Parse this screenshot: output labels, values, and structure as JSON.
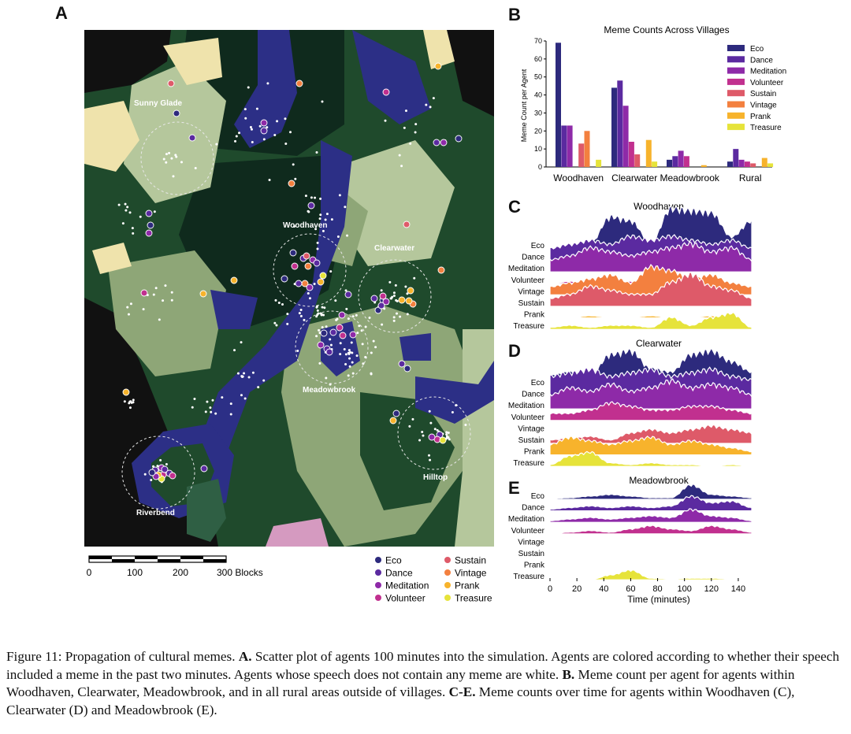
{
  "panels": {
    "a": "A",
    "b": "B",
    "c": "C",
    "d": "D",
    "e": "E"
  },
  "colors": {
    "Eco": "#2d2a7d",
    "Dance": "#5b2aa0",
    "Meditation": "#8e2aa8",
    "Volunteer": "#c1308f",
    "Sustain": "#de5a69",
    "Vintage": "#f3803f",
    "Prank": "#f7b32c",
    "Treasure": "#e6e33a",
    "water": "#2c2f86",
    "dark_forest": "#0f2a1d",
    "forest": "#1f4a2c",
    "plains": "#8ea677",
    "light_plains": "#b5c79c",
    "sand": "#efe3ac",
    "void": "#111111"
  },
  "map": {
    "villages": [
      "Sunny Glade",
      "Woodhaven",
      "Clearwater",
      "Meadowbrook",
      "Hilltop",
      "Riverbend"
    ],
    "scale": {
      "ticks": [
        "0",
        "100",
        "200",
        "300 Blocks"
      ]
    },
    "legend": [
      "Eco",
      "Dance",
      "Meditation",
      "Volunteer",
      "Sustain",
      "Vintage",
      "Prank",
      "Treasure"
    ]
  },
  "chart_data": [
    {
      "type": "bar",
      "title": "Meme Counts Across Villages",
      "ylabel": "Meme Count per Agent",
      "xlabel": "",
      "ylim": [
        0,
        70
      ],
      "yticks": [
        "0",
        "10",
        "20",
        "30",
        "40",
        "50",
        "60",
        "70"
      ],
      "categories": [
        "Woodhaven",
        "Clearwater",
        "Meadowbrook",
        "Rural"
      ],
      "series": [
        {
          "name": "Eco",
          "values": [
            69,
            44,
            4,
            3
          ]
        },
        {
          "name": "Dance",
          "values": [
            23,
            48,
            6,
            10
          ]
        },
        {
          "name": "Meditation",
          "values": [
            23,
            34,
            9,
            4
          ]
        },
        {
          "name": "Volunteer",
          "values": [
            0,
            14,
            6,
            3
          ]
        },
        {
          "name": "Sustain",
          "values": [
            13,
            7,
            0,
            2
          ]
        },
        {
          "name": "Vintage",
          "values": [
            20,
            0,
            0,
            0
          ]
        },
        {
          "name": "Prank",
          "values": [
            0,
            15,
            1,
            5
          ]
        },
        {
          "name": "Treasure",
          "values": [
            4,
            3,
            0,
            2
          ]
        }
      ],
      "legend_position": "top-right"
    },
    {
      "type": "area",
      "title": "Woodhaven",
      "series_labels": [
        "Eco",
        "Dance",
        "Meditation",
        "Volunteer",
        "Vintage",
        "Sustain",
        "Prank",
        "Treasure"
      ],
      "xlim": [
        0,
        150
      ],
      "profiles": [
        [
          0,
          0.05,
          0.15,
          0.8,
          0.7,
          0.15,
          1.0,
          0.95,
          0.9,
          0.3,
          0.7
        ],
        [
          0.3,
          0.4,
          0.5,
          0.4,
          0.6,
          0.5,
          0.6,
          0.5,
          0.4,
          0.5,
          0.3
        ],
        [
          0.3,
          0.4,
          0.6,
          0.5,
          0.4,
          0.5,
          0.6,
          0.7,
          0.5,
          0.6,
          0.3
        ],
        [
          0,
          0.05,
          0,
          0.05,
          0.05,
          0,
          0.05,
          0,
          0.05,
          0,
          0
        ],
        [
          0.2,
          0.3,
          0.4,
          0.5,
          0.3,
          0.7,
          0.6,
          0.4,
          0.5,
          0.3,
          0.2
        ],
        [
          0.2,
          0.3,
          0.5,
          0.4,
          0.3,
          0.3,
          0.6,
          0.8,
          0.5,
          0.4,
          0.2
        ],
        [
          0,
          0,
          0.05,
          0,
          0,
          0.05,
          0,
          0,
          0.05,
          0,
          0
        ],
        [
          0.05,
          0.1,
          0.05,
          0.1,
          0.1,
          0.05,
          0.3,
          0.1,
          0.3,
          0.4,
          0.05
        ]
      ]
    },
    {
      "type": "area",
      "title": "Clearwater",
      "series_labels": [
        "Eco",
        "Dance",
        "Meditation",
        "Volunteer",
        "Vintage",
        "Sustain",
        "Prank",
        "Treasure"
      ],
      "xlim": [
        0,
        150
      ],
      "profiles": [
        [
          0.3,
          0.4,
          0.3,
          0.9,
          1.0,
          0.5,
          0.4,
          0.9,
          1.0,
          0.7,
          0.4
        ],
        [
          0.6,
          0.7,
          0.8,
          0.6,
          0.7,
          0.8,
          0.6,
          0.7,
          0.8,
          0.6,
          0.5
        ],
        [
          0.4,
          0.6,
          0.5,
          0.7,
          0.5,
          0.6,
          0.8,
          0.6,
          0.7,
          0.6,
          0.4
        ],
        [
          0.2,
          0.2,
          0.3,
          0.5,
          0.4,
          0.3,
          0.3,
          0.4,
          0.4,
          0.3,
          0.2
        ],
        [
          0,
          0,
          0,
          0,
          0.02,
          0,
          0,
          0,
          0,
          0,
          0
        ],
        [
          0.1,
          0.15,
          0.2,
          0.1,
          0.3,
          0.4,
          0.3,
          0.4,
          0.5,
          0.4,
          0.3
        ],
        [
          0.3,
          0.5,
          0.4,
          0.3,
          0.4,
          0.5,
          0.3,
          0.4,
          0.3,
          0.2,
          0.1
        ],
        [
          0.05,
          0.3,
          0.4,
          0.1,
          0.05,
          0.1,
          0.05,
          0.05,
          0,
          0.05,
          0
        ]
      ]
    },
    {
      "type": "area",
      "title": "Meadowbrook",
      "series_labels": [
        "Eco",
        "Dance",
        "Meditation",
        "Volunteer",
        "Vintage",
        "Sustain",
        "Prank",
        "Treasure"
      ],
      "xlim": [
        0,
        150
      ],
      "xticks": [
        "0",
        "20",
        "40",
        "60",
        "80",
        "100",
        "120",
        "140"
      ],
      "xlabel": "Time (minutes)",
      "profiles": [
        [
          0.05,
          0.1,
          0.2,
          0.3,
          0.2,
          0.1,
          0.1,
          0.9,
          0.3,
          0.2,
          0.1
        ],
        [
          0.1,
          0.2,
          0.3,
          0.2,
          0.3,
          0.2,
          0.3,
          0.9,
          0.5,
          0.6,
          0.2
        ],
        [
          0.1,
          0.2,
          0.3,
          0.2,
          0.3,
          0.4,
          0.3,
          0.8,
          0.4,
          0.3,
          0.1
        ],
        [
          0,
          0.1,
          0.2,
          0.1,
          0.3,
          0.5,
          0.3,
          0.2,
          0.5,
          0.3,
          0.1
        ],
        [
          0,
          0.05,
          0,
          0,
          0,
          0,
          0.02,
          0,
          0,
          0,
          0
        ],
        [
          0,
          0,
          0,
          0,
          0,
          0,
          0,
          0,
          0,
          0,
          0
        ],
        [
          0,
          0,
          0,
          0,
          0,
          0,
          0,
          0,
          0,
          0,
          0
        ],
        [
          0,
          0,
          0,
          0.3,
          0.6,
          0.1,
          0.05,
          0.1,
          0.1,
          0.05,
          0
        ]
      ]
    }
  ],
  "caption": {
    "figure_label": "Figure 11:",
    "title": "Propagation of cultural memes.",
    "a_label": "A.",
    "a_text": "Scatter plot of agents 100 minutes into the simulation. Agents are colored according to whether their speech included a meme in the past two minutes. Agents whose speech does not contain any meme are white.",
    "b_label": "B.",
    "b_text": "Meme count per agent for agents within Woodhaven, Clearwater, Meadowbrook, and in all rural areas outside of villages.",
    "ce_label": "C-E.",
    "ce_text": "Meme counts over time for agents within Woodhaven (C), Clearwater (D) and Meadowbrook (E)."
  }
}
